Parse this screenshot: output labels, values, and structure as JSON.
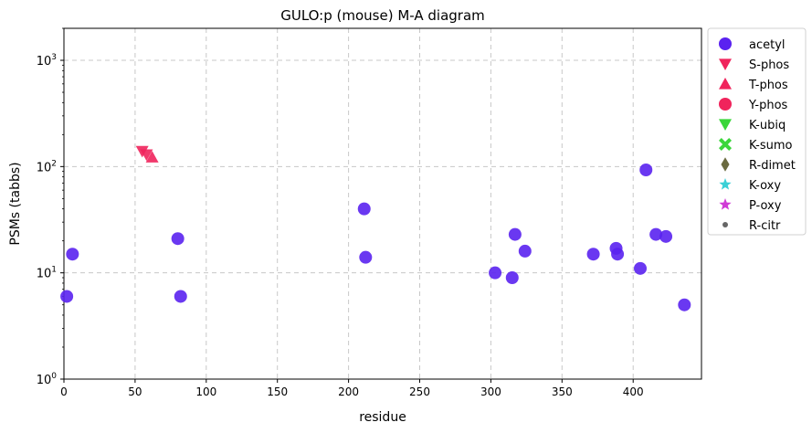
{
  "chart_data": {
    "type": "scatter",
    "title": "GULO:p (mouse) M-A diagram",
    "xlabel": "residue",
    "ylabel": "PSMs (tabbs)",
    "xlim": [
      0,
      448
    ],
    "ylim": [
      1,
      2000
    ],
    "yscale": "log",
    "grid": true,
    "legend_position": "outside-right",
    "x_ticks": [
      "0",
      "50",
      "100",
      "150",
      "200",
      "250",
      "300",
      "350",
      "400"
    ],
    "y_ticks": [
      {
        "value": 1,
        "base": "10",
        "exp": "0"
      },
      {
        "value": 10,
        "base": "10",
        "exp": "1"
      },
      {
        "value": 100,
        "base": "10",
        "exp": "2"
      },
      {
        "value": 1000,
        "base": "10",
        "exp": "3"
      }
    ],
    "series": [
      {
        "name": "acetyl",
        "marker": "circle",
        "color": "#5a22f0",
        "points": [
          [
            2,
            6
          ],
          [
            6,
            15
          ],
          [
            80,
            21
          ],
          [
            82,
            6
          ],
          [
            211,
            40
          ],
          [
            212,
            14
          ],
          [
            303,
            10
          ],
          [
            315,
            9
          ],
          [
            317,
            23
          ],
          [
            324,
            16
          ],
          [
            372,
            15
          ],
          [
            388,
            17
          ],
          [
            389,
            15
          ],
          [
            405,
            11
          ],
          [
            409,
            93
          ],
          [
            416,
            23
          ],
          [
            423,
            22
          ],
          [
            436,
            5
          ]
        ]
      },
      {
        "name": "S-phos",
        "marker": "triangle-down",
        "color": "#f0245c",
        "points": [
          [
            55,
            140
          ],
          [
            58,
            130
          ]
        ]
      },
      {
        "name": "T-phos",
        "marker": "triangle-up",
        "color": "#f0245c",
        "points": [
          [
            62,
            122
          ]
        ]
      },
      {
        "name": "Y-phos",
        "marker": "circle",
        "color": "#f0245c",
        "points": []
      },
      {
        "name": "K-ubiq",
        "marker": "triangle-down",
        "color": "#3ad63a",
        "points": []
      },
      {
        "name": "K-sumo",
        "marker": "x",
        "color": "#3ad63a",
        "points": []
      },
      {
        "name": "R-dimet",
        "marker": "diamond",
        "color": "#6b6b40",
        "points": []
      },
      {
        "name": "K-oxy",
        "marker": "star",
        "color": "#3ad0d6",
        "points": []
      },
      {
        "name": "P-oxy",
        "marker": "star",
        "color": "#d03ad6",
        "points": []
      },
      {
        "name": "R-citr",
        "marker": "small-circle",
        "color": "#666666",
        "points": []
      }
    ]
  }
}
